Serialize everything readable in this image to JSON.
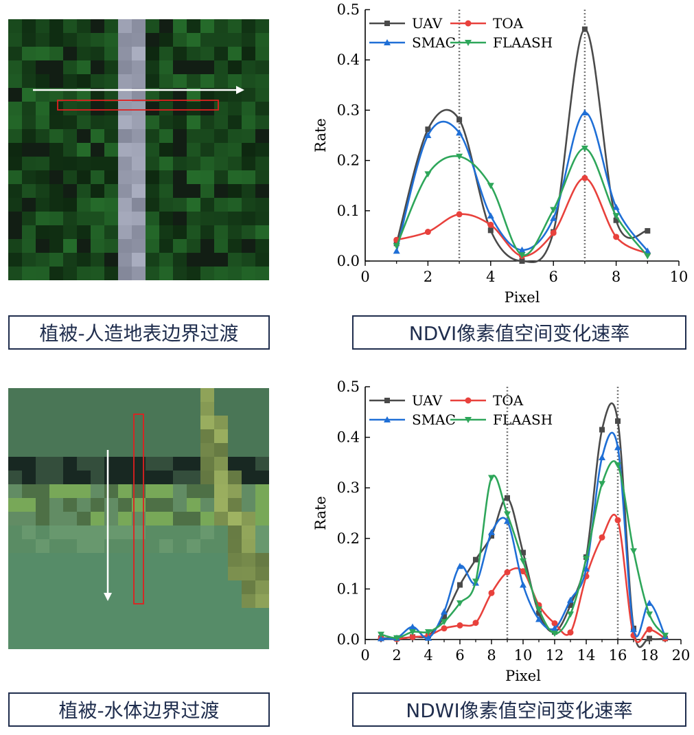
{
  "captions": {
    "top_left": "植被-人造地表边界过渡",
    "top_right": "NDVI像素值空间变化速率",
    "bottom_left": "植被-水体边界过渡",
    "bottom_right": "NDWI像素值空间变化速率"
  },
  "colors": {
    "UAV": "#4a4a4a",
    "TOA": "#e8413c",
    "SMAC": "#1f6fd6",
    "FLAASH": "#2ea65a",
    "caption_border": "#1f2d4d",
    "roi_box": "#e02020",
    "arrow": "#ffffff"
  },
  "chart_data": [
    {
      "type": "line",
      "title": "",
      "xlabel": "Pixel",
      "ylabel": "Rate",
      "xlim": [
        0,
        10
      ],
      "ylim": [
        0,
        0.5
      ],
      "xticks": [
        0,
        2,
        4,
        6,
        8,
        10
      ],
      "yticks": [
        0.0,
        0.1,
        0.2,
        0.3,
        0.4,
        0.5
      ],
      "vlines": [
        3,
        7
      ],
      "legend": "top-left, two columns",
      "x": [
        1,
        2,
        3,
        4,
        5,
        6,
        7,
        8,
        9
      ],
      "series": [
        {
          "name": "UAV",
          "marker": "square",
          "values": [
            0.035,
            0.262,
            0.281,
            0.061,
            0.0,
            0.058,
            0.461,
            0.081,
            0.06
          ]
        },
        {
          "name": "TOA",
          "marker": "circle",
          "values": [
            0.042,
            0.058,
            0.093,
            0.072,
            0.01,
            0.056,
            0.165,
            0.048,
            0.015
          ]
        },
        {
          "name": "SMAC",
          "marker": "triangle-up",
          "values": [
            0.02,
            0.25,
            0.255,
            0.09,
            0.022,
            0.085,
            0.295,
            0.107,
            0.02
          ]
        },
        {
          "name": "FLAASH",
          "marker": "triangle-down",
          "values": [
            0.03,
            0.173,
            0.208,
            0.15,
            0.012,
            0.102,
            0.224,
            0.09,
            0.01
          ]
        }
      ]
    },
    {
      "type": "line",
      "title": "",
      "xlabel": "Pixel",
      "ylabel": "Rate",
      "xlim": [
        0,
        20
      ],
      "ylim": [
        0,
        0.5
      ],
      "xticks": [
        0,
        2,
        4,
        6,
        8,
        10,
        12,
        14,
        16,
        18,
        20
      ],
      "yticks": [
        0.0,
        0.1,
        0.2,
        0.3,
        0.4,
        0.5
      ],
      "vlines": [
        9,
        16
      ],
      "legend": "top-left, two columns",
      "x": [
        1,
        2,
        3,
        4,
        5,
        6,
        7,
        8,
        9,
        10,
        11,
        12,
        13,
        14,
        15,
        16,
        17,
        18,
        19
      ],
      "series": [
        {
          "name": "UAV",
          "marker": "square",
          "values": [
            0.003,
            0.002,
            0.005,
            0.008,
            0.045,
            0.108,
            0.158,
            0.205,
            0.28,
            0.172,
            0.052,
            0.015,
            0.068,
            0.163,
            0.415,
            0.432,
            0.022,
            0.002,
            0.002
          ]
        },
        {
          "name": "TOA",
          "marker": "circle",
          "values": [
            0.002,
            0.001,
            0.005,
            0.008,
            0.022,
            0.028,
            0.033,
            0.092,
            0.133,
            0.135,
            0.068,
            0.032,
            0.014,
            0.125,
            0.202,
            0.236,
            0.008,
            0.02,
            0.002
          ]
        },
        {
          "name": "SMAC",
          "marker": "triangle-up",
          "values": [
            0.002,
            0.003,
            0.025,
            0.003,
            0.055,
            0.145,
            0.112,
            0.212,
            0.234,
            0.108,
            0.04,
            0.022,
            0.078,
            0.14,
            0.36,
            0.38,
            0.02,
            0.072,
            0.006
          ]
        },
        {
          "name": "FLAASH",
          "marker": "triangle-down",
          "values": [
            0.01,
            0.003,
            0.015,
            0.015,
            0.035,
            0.072,
            0.115,
            0.32,
            0.248,
            0.155,
            0.06,
            0.012,
            0.05,
            0.16,
            0.308,
            0.345,
            0.175,
            0.05,
            0.008
          ]
        }
      ]
    }
  ]
}
